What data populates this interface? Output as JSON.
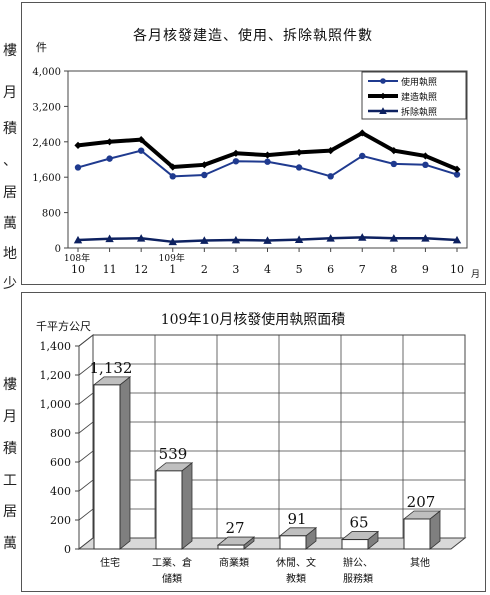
{
  "side_text": {
    "chars": [
      "樓",
      "月",
      "積",
      "、",
      "居",
      "萬",
      "地",
      "少",
      "樓",
      "月",
      "積",
      "工",
      "居",
      "萬"
    ]
  },
  "chart_data": [
    {
      "type": "line",
      "title": "各月核發建造、使用、拆除執照件數",
      "ylabel": "件",
      "xlabel": "月",
      "ylim": [
        0,
        4000
      ],
      "yticks": [
        0,
        800,
        1600,
        2400,
        3200,
        4000
      ],
      "ytick_labels": [
        "0",
        "800",
        "1,600",
        "2,400",
        "3,200",
        "4,000"
      ],
      "categories": [
        "10",
        "11",
        "12",
        "1",
        "2",
        "3",
        "4",
        "5",
        "6",
        "7",
        "8",
        "9",
        "10"
      ],
      "year_labels": [
        {
          "index": 0,
          "text": "108年"
        },
        {
          "index": 3,
          "text": "109年"
        }
      ],
      "series": [
        {
          "name": "使用執照",
          "marker": "circle",
          "values": [
            1820,
            2020,
            2200,
            1620,
            1650,
            1960,
            1950,
            1820,
            1620,
            2080,
            1900,
            1880,
            1660
          ]
        },
        {
          "name": "建造執照",
          "marker": "diamond",
          "values": [
            2320,
            2400,
            2450,
            1830,
            1880,
            2140,
            2100,
            2160,
            2200,
            2600,
            2200,
            2080,
            1780
          ]
        },
        {
          "name": "拆除執照",
          "marker": "triangle",
          "values": [
            180,
            210,
            220,
            140,
            170,
            180,
            170,
            190,
            220,
            240,
            220,
            220,
            180
          ]
        }
      ],
      "legend": "top-right",
      "grid": false
    },
    {
      "type": "bar",
      "title": "109年10月核發使用執照面積",
      "ylabel": "千平方公尺",
      "ylim": [
        0,
        1400
      ],
      "yticks": [
        0,
        200,
        400,
        600,
        800,
        1000,
        1200,
        1400
      ],
      "ytick_labels": [
        "0",
        "200",
        "400",
        "600",
        "800",
        "1,000",
        "1,200",
        "1,400"
      ],
      "categories": [
        [
          "住宅"
        ],
        [
          "工業、倉",
          "儲類"
        ],
        [
          "商業類"
        ],
        [
          "休閒、文",
          "教類"
        ],
        [
          "辦公、",
          "服務類"
        ],
        [
          "其他"
        ]
      ],
      "values": [
        1132,
        539,
        27,
        91,
        65,
        207
      ],
      "value_labels": [
        "1,132",
        "539",
        "27",
        "91",
        "65",
        "207"
      ],
      "grid": true
    }
  ]
}
